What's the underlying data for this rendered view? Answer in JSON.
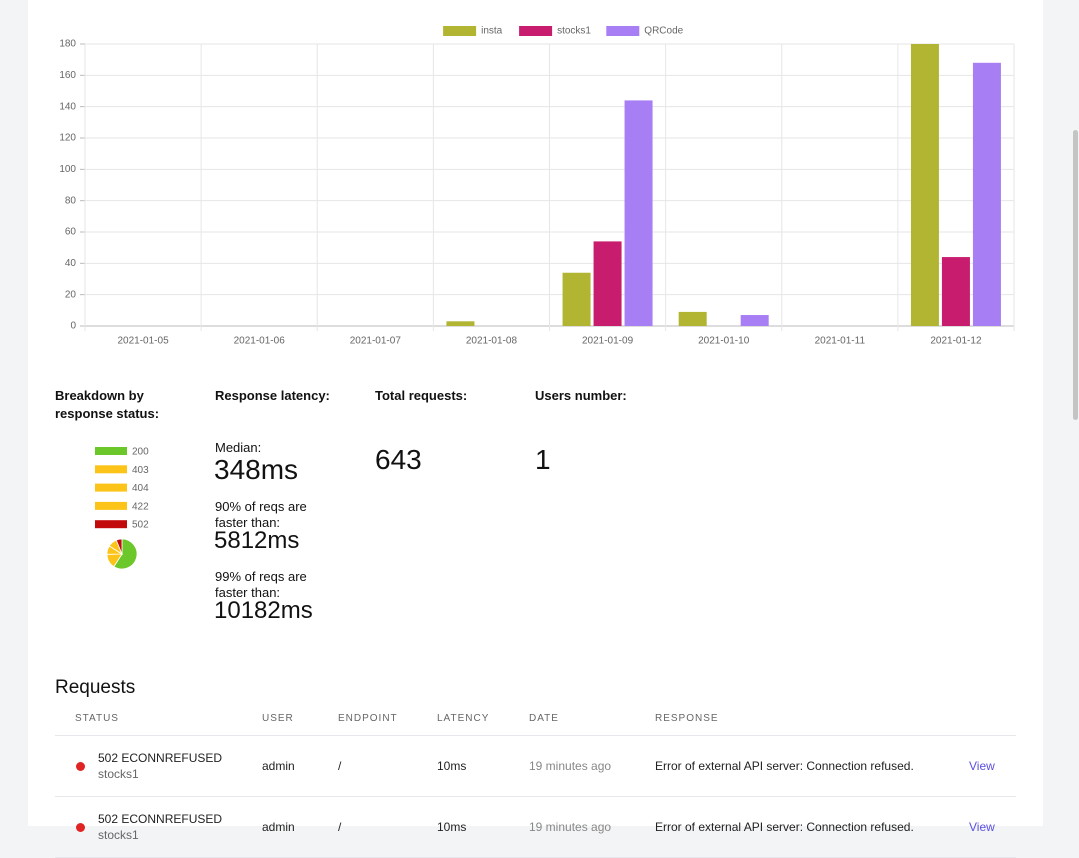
{
  "chart_data": {
    "type": "bar",
    "categories": [
      "2021-01-05",
      "2021-01-06",
      "2021-01-07",
      "2021-01-08",
      "2021-01-09",
      "2021-01-10",
      "2021-01-11",
      "2021-01-12"
    ],
    "series": [
      {
        "name": "insta",
        "color": "#b1b532",
        "values": [
          0,
          0,
          0,
          3,
          34,
          9,
          0,
          180
        ]
      },
      {
        "name": "stocks1",
        "color": "#c81d6e",
        "values": [
          0,
          0,
          0,
          0,
          54,
          0,
          0,
          44
        ]
      },
      {
        "name": "QRCode",
        "color": "#a87ef5",
        "values": [
          0,
          0,
          0,
          0,
          144,
          7,
          0,
          168
        ]
      }
    ],
    "ylim": [
      0,
      180
    ],
    "yticks": [
      0,
      20,
      40,
      60,
      80,
      100,
      120,
      140,
      160,
      180
    ],
    "grid": true,
    "legend": "top"
  },
  "stats": {
    "breakdown": {
      "title": "Breakdown by response status:",
      "type": "pie",
      "categories": [
        "200",
        "403",
        "404",
        "422",
        "502"
      ],
      "colors": [
        "#6cc72a",
        "#fcc419",
        "#fcc419",
        "#fcc419",
        "#c30a0a"
      ],
      "values": [
        380,
        100,
        60,
        63,
        40
      ]
    },
    "latency": {
      "title": "Response latency:",
      "median_label": "Median:",
      "median": "348ms",
      "p90_label": "90% of reqs are faster than:",
      "p90": "5812ms",
      "p99_label": "99% of reqs are faster than:",
      "p99": "10182ms"
    },
    "total": {
      "title": "Total requests:",
      "value": "643"
    },
    "users": {
      "title": "Users number:",
      "value": "1"
    }
  },
  "table": {
    "title": "Requests",
    "headers": [
      "STATUS",
      "USER",
      "ENDPOINT",
      "LATENCY",
      "DATE",
      "RESPONSE"
    ],
    "rows": [
      [
        "502 ECONNREFUSED",
        "stocks1",
        "admin",
        "/",
        "10ms",
        "19 minutes ago",
        "Error of external API server: Connection refused.",
        "View"
      ],
      [
        "502 ECONNREFUSED",
        "stocks1",
        "admin",
        "/",
        "10ms",
        "19 minutes ago",
        "Error of external API server: Connection refused.",
        "View"
      ]
    ]
  }
}
